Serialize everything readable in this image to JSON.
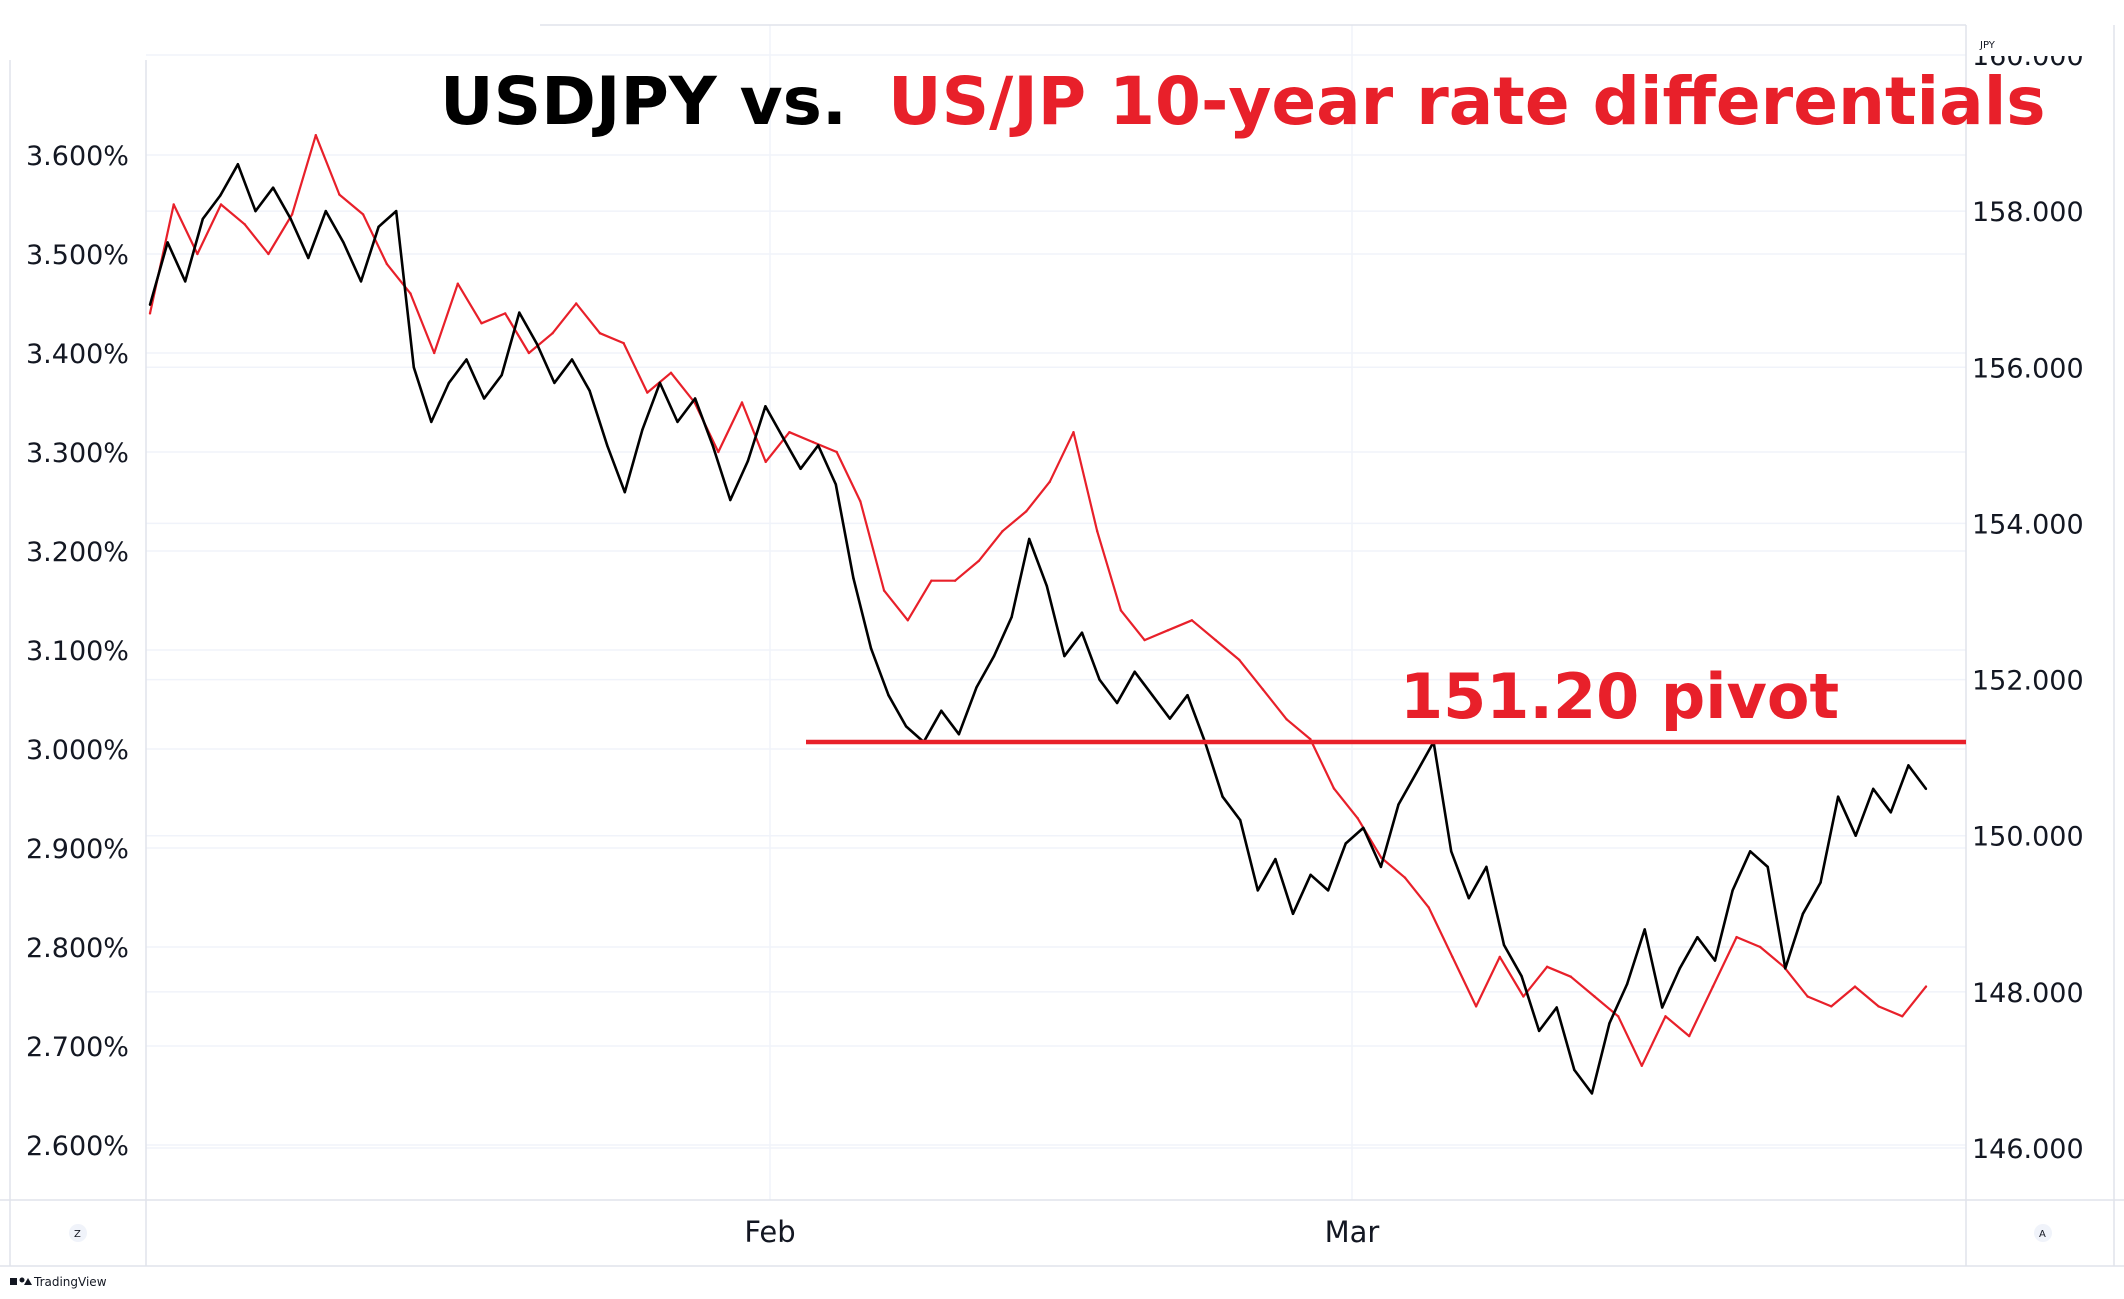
{
  "chart_data": {
    "type": "line",
    "title_part1": "USDJPY vs.",
    "title_part2": "US/JP 10-year rate differentials",
    "x_ticks": [
      "Feb",
      "Mar"
    ],
    "left_axis": {
      "ticks": [
        "3.600%",
        "3.500%",
        "3.400%",
        "3.300%",
        "3.200%",
        "3.100%",
        "3.000%",
        "2.900%",
        "2.800%",
        "2.700%",
        "2.600%"
      ],
      "values": [
        3.6,
        3.5,
        3.4,
        3.3,
        3.2,
        3.1,
        3.0,
        2.9,
        2.8,
        2.7,
        2.6
      ],
      "range": [
        2.55,
        3.67
      ]
    },
    "right_axis": {
      "currency": "JPY",
      "ticks": [
        "160.000",
        "158.000",
        "156.000",
        "154.000",
        "152.000",
        "150.000",
        "148.000",
        "146.000"
      ],
      "values": [
        160,
        158,
        156,
        154,
        152,
        150,
        148,
        146
      ],
      "range": [
        145.3,
        160.4
      ]
    },
    "pivot": {
      "label": "151.20 pivot",
      "value": 151.2,
      "color": "#e8202a"
    },
    "series": [
      {
        "color": "#000000",
        "axis": "right",
        "values": [
          156.8,
          157.6,
          157.1,
          157.9,
          158.2,
          158.6,
          158.0,
          158.3,
          157.9,
          157.4,
          158.0,
          157.6,
          157.1,
          157.8,
          158.0,
          156.0,
          155.3,
          155.8,
          156.1,
          155.6,
          155.9,
          156.7,
          156.3,
          155.8,
          156.1,
          155.7,
          155.0,
          154.4,
          155.2,
          155.8,
          155.3,
          155.6,
          155.0,
          154.3,
          154.8,
          155.5,
          155.1,
          154.7,
          155.0,
          154.5,
          153.3,
          152.4,
          151.8,
          151.4,
          151.2,
          151.6,
          151.3,
          151.9,
          152.3,
          152.8,
          153.8,
          153.2,
          152.3,
          152.6,
          152.0,
          151.7,
          152.1,
          151.8,
          151.5,
          151.8,
          151.2,
          150.5,
          150.2,
          149.3,
          149.7,
          149.0,
          149.5,
          149.3,
          149.9,
          150.1,
          149.6,
          150.4,
          150.8,
          151.2,
          149.8,
          149.2,
          149.6,
          148.6,
          148.2,
          147.5,
          147.8,
          147.0,
          146.7,
          147.6,
          148.1,
          148.8,
          147.8,
          148.3,
          148.7,
          148.4,
          149.3,
          149.8,
          149.6,
          148.3,
          149.0,
          149.4,
          150.5,
          150.0,
          150.6,
          150.3,
          150.9,
          150.6
        ]
      },
      {
        "color": "#e8202a",
        "axis": "left",
        "values": [
          3.44,
          3.55,
          3.5,
          3.55,
          3.53,
          3.5,
          3.54,
          3.62,
          3.56,
          3.54,
          3.49,
          3.46,
          3.4,
          3.47,
          3.43,
          3.44,
          3.4,
          3.42,
          3.45,
          3.42,
          3.41,
          3.36,
          3.38,
          3.35,
          3.3,
          3.35,
          3.29,
          3.32,
          3.31,
          3.3,
          3.25,
          3.16,
          3.13,
          3.17,
          3.17,
          3.19,
          3.22,
          3.24,
          3.27,
          3.32,
          3.22,
          3.14,
          3.11,
          3.12,
          3.13,
          3.11,
          3.09,
          3.06,
          3.03,
          3.01,
          2.96,
          2.93,
          2.89,
          2.87,
          2.84,
          2.79,
          2.74,
          2.79,
          2.75,
          2.78,
          2.77,
          2.75,
          2.73,
          2.68,
          2.73,
          2.71,
          2.76,
          2.81,
          2.8,
          2.78,
          2.75,
          2.74,
          2.76,
          2.74,
          2.73,
          2.76
        ]
      }
    ]
  },
  "footer": {
    "brand": "TradingView",
    "z_label": "Z",
    "a_label": "A"
  }
}
